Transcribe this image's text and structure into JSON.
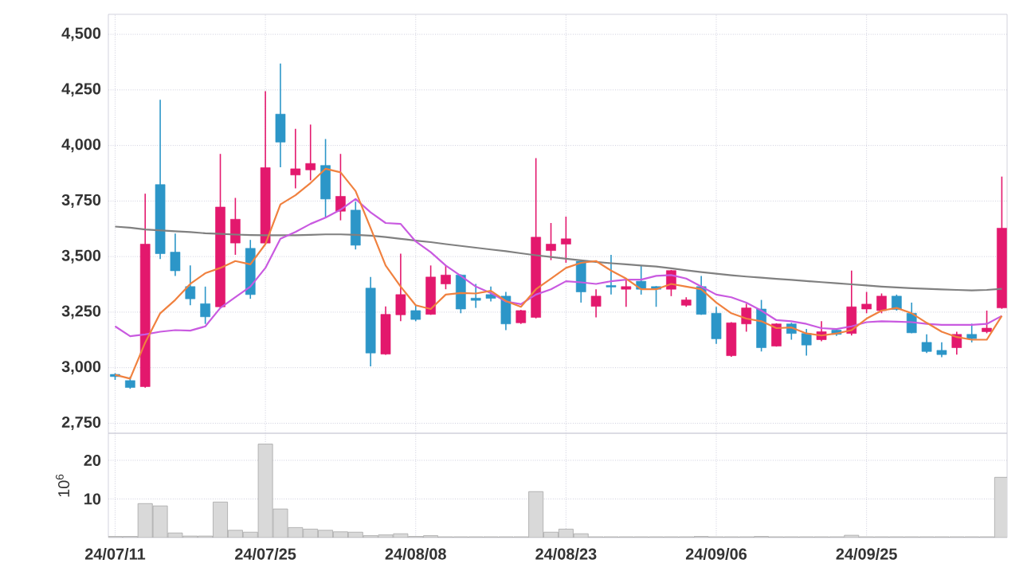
{
  "chart_data": [
    {
      "type": "candlestick",
      "categories": [
        null,
        null,
        null,
        null,
        null,
        null,
        null,
        null,
        null,
        null,
        null,
        null,
        null,
        null,
        null,
        null,
        null,
        null,
        null,
        null,
        null,
        null,
        null,
        null,
        null,
        null,
        null,
        null,
        null,
        null,
        null,
        null,
        null,
        null,
        null,
        null,
        null,
        null,
        null,
        null,
        null,
        null,
        null,
        null,
        null,
        null,
        null,
        null,
        null,
        null,
        null,
        null,
        null,
        null,
        null,
        null,
        null,
        null,
        null,
        null
      ],
      "ohlc": [
        [
          2970,
          2975,
          2945,
          2960
        ],
        [
          2942,
          2960,
          2905,
          2911
        ],
        [
          2915,
          3783,
          2910,
          3556
        ],
        [
          3824,
          4206,
          3489,
          3513
        ],
        [
          3520,
          3604,
          3413,
          3436
        ],
        [
          3365,
          3460,
          3281,
          3310
        ],
        [
          3288,
          3365,
          3197,
          3229
        ],
        [
          3274,
          3962,
          3270,
          3723
        ],
        [
          3561,
          3764,
          3508,
          3668
        ],
        [
          3537,
          3575,
          3310,
          3329
        ],
        [
          3561,
          4244,
          3555,
          3900
        ],
        [
          4141,
          4369,
          3902,
          4015
        ],
        [
          3867,
          4075,
          3807,
          3895
        ],
        [
          3890,
          4094,
          3843,
          3919
        ],
        [
          3910,
          4029,
          3675,
          3759
        ],
        [
          3704,
          3962,
          3663,
          3771
        ],
        [
          3709,
          3747,
          3532,
          3551
        ],
        [
          3358,
          3408,
          3006,
          3066
        ],
        [
          3061,
          3276,
          3058,
          3240
        ],
        [
          3238,
          3513,
          3209,
          3329
        ],
        [
          3257,
          3281,
          3209,
          3217
        ],
        [
          3240,
          3460,
          3238,
          3408
        ],
        [
          3377,
          3460,
          3353,
          3417
        ],
        [
          3417,
          3420,
          3245,
          3264
        ],
        [
          3313,
          3377,
          3269,
          3303
        ],
        [
          3329,
          3365,
          3298,
          3312
        ],
        [
          3322,
          3341,
          3169,
          3197
        ],
        [
          3202,
          3260,
          3197,
          3257
        ],
        [
          3226,
          3943,
          3222,
          3587
        ],
        [
          3527,
          3651,
          3484,
          3556
        ],
        [
          3556,
          3680,
          3472,
          3580
        ],
        [
          3479,
          3484,
          3293,
          3341
        ],
        [
          3276,
          3353,
          3226,
          3322
        ],
        [
          3370,
          3508,
          3329,
          3363
        ],
        [
          3353,
          3401,
          3274,
          3365
        ],
        [
          3389,
          3460,
          3329,
          3353
        ],
        [
          3365,
          3367,
          3274,
          3353
        ],
        [
          3353,
          3440,
          3322,
          3437
        ],
        [
          3281,
          3317,
          3274,
          3305
        ],
        [
          3365,
          3413,
          3238,
          3240
        ],
        [
          3245,
          3274,
          3107,
          3130
        ],
        [
          3054,
          3205,
          3049,
          3202
        ],
        [
          3197,
          3288,
          3162,
          3269
        ],
        [
          3264,
          3305,
          3073,
          3090
        ],
        [
          3097,
          3200,
          3095,
          3197
        ],
        [
          3197,
          3202,
          3126,
          3154
        ],
        [
          3154,
          3174,
          3054,
          3102
        ],
        [
          3126,
          3209,
          3119,
          3162
        ],
        [
          3169,
          3174,
          3143,
          3150
        ],
        [
          3154,
          3437,
          3145,
          3274
        ],
        [
          3264,
          3341,
          3245,
          3286
        ],
        [
          3257,
          3334,
          3245,
          3322
        ],
        [
          3322,
          3329,
          3257,
          3262
        ],
        [
          3245,
          3293,
          3155,
          3157
        ],
        [
          3114,
          3150,
          3066,
          3073
        ],
        [
          3078,
          3114,
          3047,
          3059
        ],
        [
          3090,
          3162,
          3059,
          3150
        ],
        [
          3150,
          3198,
          3114,
          3131
        ],
        [
          3162,
          3257,
          3155,
          3178
        ],
        [
          3269,
          3860,
          3265,
          3628
        ]
      ],
      "colors": [
        "#2c96c8",
        "#2c96c8",
        "#e3186d",
        "#2c96c8",
        "#2c96c8",
        "#2c96c8",
        "#2c96c8",
        "#e3186d",
        "#e3186d",
        "#2c96c8",
        "#e3186d",
        "#2c96c8",
        "#e3186d",
        "#e3186d",
        "#2c96c8",
        "#e3186d",
        "#2c96c8",
        "#2c96c8",
        "#e3186d",
        "#e3186d",
        "#2c96c8",
        "#e3186d",
        "#e3186d",
        "#2c96c8",
        "#2c96c8",
        "#2c96c8",
        "#2c96c8",
        "#e3186d",
        "#e3186d",
        "#e3186d",
        "#e3186d",
        "#2c96c8",
        "#e3186d",
        "#2c96c8",
        "#e3186d",
        "#2c96c8",
        "#2c96c8",
        "#e3186d",
        "#e3186d",
        "#2c96c8",
        "#2c96c8",
        "#e3186d",
        "#e3186d",
        "#2c96c8",
        "#e3186d",
        "#2c96c8",
        "#2c96c8",
        "#e3186d",
        "#2c96c8",
        "#e3186d",
        "#e3186d",
        "#e3186d",
        "#2c96c8",
        "#2c96c8",
        "#2c96c8",
        "#2c96c8",
        "#e3186d",
        "#2c96c8",
        "#e3186d",
        "#e3186d"
      ],
      "series": [
        {
          "type": "line",
          "color": "#808080",
          "values": [
            3635,
            3630,
            3622,
            3618,
            3614,
            3610,
            3605,
            3602,
            3599,
            3597,
            3596,
            3596,
            3596,
            3598,
            3600,
            3600,
            3598,
            3594,
            3588,
            3580,
            3572,
            3565,
            3556,
            3548,
            3540,
            3532,
            3524,
            3515,
            3506,
            3498,
            3490,
            3483,
            3476,
            3470,
            3465,
            3460,
            3455,
            3447,
            3438,
            3430,
            3423,
            3416,
            3410,
            3405,
            3400,
            3395,
            3390,
            3385,
            3380,
            3375,
            3370,
            3365,
            3361,
            3358,
            3355,
            3352,
            3350,
            3348,
            3350,
            3355
          ]
        },
        {
          "type": "line",
          "color": "#c95ae0",
          "values": [
            3186,
            3142,
            3150,
            3162,
            3169,
            3167,
            3186,
            3269,
            3317,
            3365,
            3449,
            3580,
            3611,
            3647,
            3675,
            3711,
            3759,
            3699,
            3651,
            3647,
            3568,
            3520,
            3460,
            3413,
            3365,
            3336,
            3298,
            3286,
            3329,
            3353,
            3389,
            3384,
            3377,
            3389,
            3396,
            3396,
            3413,
            3417,
            3401,
            3365,
            3329,
            3317,
            3293,
            3257,
            3214,
            3209,
            3197,
            3178,
            3174,
            3186,
            3205,
            3209,
            3207,
            3205,
            3197,
            3193,
            3193,
            3193,
            3197,
            3233
          ]
        },
        {
          "type": "line",
          "color": "#f0813f",
          "values": [
            2968,
            2951,
            3113,
            3245,
            3305,
            3377,
            3425,
            3449,
            3480,
            3465,
            3556,
            3735,
            3776,
            3831,
            3895,
            3879,
            3795,
            3628,
            3460,
            3365,
            3281,
            3264,
            3329,
            3336,
            3334,
            3346,
            3300,
            3274,
            3353,
            3401,
            3449,
            3472,
            3480,
            3437,
            3401,
            3353,
            3353,
            3377,
            3365,
            3353,
            3293,
            3245,
            3221,
            3209,
            3178,
            3181,
            3154,
            3145,
            3154,
            3169,
            3221,
            3257,
            3269,
            3245,
            3202,
            3162,
            3138,
            3126,
            3126,
            3233
          ]
        }
      ],
      "ylim": [
        2705,
        4590
      ],
      "yticks": [
        {
          "value": 2750,
          "label": "2,750"
        },
        {
          "value": 3000,
          "label": "3,000"
        },
        {
          "value": 3250,
          "label": "3,250"
        },
        {
          "value": 3500,
          "label": "3,500"
        },
        {
          "value": 3750,
          "label": "3,750"
        },
        {
          "value": 4000,
          "label": "4,000"
        },
        {
          "value": 4250,
          "label": "4,250"
        },
        {
          "value": 4500,
          "label": "4,500"
        }
      ],
      "grid": true,
      "tick_labels": "y"
    },
    {
      "type": "bar",
      "categories": [
        "24/07/11",
        null,
        null,
        null,
        null,
        null,
        null,
        null,
        null,
        null,
        "24/07/25",
        null,
        null,
        null,
        null,
        null,
        null,
        null,
        null,
        null,
        "24/08/08",
        null,
        null,
        null,
        null,
        null,
        null,
        null,
        null,
        null,
        "24/08/23",
        null,
        null,
        null,
        null,
        null,
        null,
        null,
        null,
        null,
        "24/09/06",
        null,
        null,
        null,
        null,
        null,
        null,
        null,
        null,
        null,
        "24/09/25",
        null,
        null,
        null,
        null,
        null,
        null,
        null,
        null,
        null
      ],
      "values": [
        0.3,
        0.3,
        8.8,
        8.2,
        1.2,
        0.4,
        0.4,
        9.2,
        1.9,
        1.4,
        24.2,
        7.4,
        2.6,
        2.2,
        1.9,
        1.5,
        1.4,
        0.5,
        0.7,
        1.0,
        0.3,
        0.5,
        0.2,
        0.2,
        0.2,
        0.2,
        0.2,
        0.2,
        11.9,
        1.4,
        2.2,
        1.0,
        0.2,
        0.2,
        0.2,
        0.2,
        0.2,
        0.2,
        0.2,
        0.3,
        0.2,
        0.2,
        0.2,
        0.3,
        0.2,
        0.2,
        0.2,
        0.2,
        0.2,
        0.6,
        0.2,
        0.2,
        0.2,
        0.2,
        0.2,
        0.2,
        0.2,
        0.2,
        0.2,
        15.6
      ],
      "color": "#d9d9d9",
      "ylabel": "10$^{6}$",
      "ylim": [
        0,
        27
      ],
      "yticks": [
        10,
        20
      ],
      "grid": true
    }
  ]
}
